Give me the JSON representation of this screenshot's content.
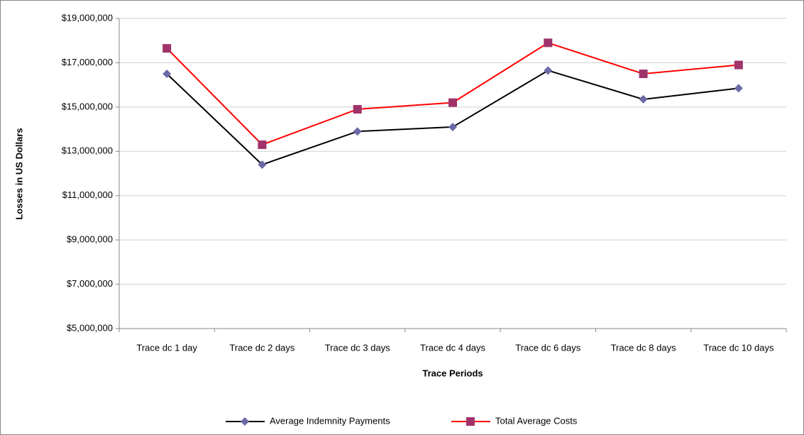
{
  "chart_data": {
    "type": "line",
    "x_label": "Trace Periods",
    "y_label": "Losses in US Dollars",
    "categories": [
      "Trace dc 1 day",
      "Trace dc 2 days",
      "Trace dc 3 days",
      "Trace dc 4 days",
      "Trace dc 6 days",
      "Trace dc 8 days",
      "Trace dc 10 days"
    ],
    "series": [
      {
        "name": "Average Indemnity Payments",
        "color": "#000000",
        "marker": "diamond",
        "marker_color": "#6a6aa6",
        "values": [
          16500000,
          12400000,
          13900000,
          14100000,
          16650000,
          15350000,
          15850000
        ]
      },
      {
        "name": "Total Average Costs",
        "color": "#ff0000",
        "marker": "square",
        "marker_color": "#a0336a",
        "values": [
          17650000,
          13300000,
          14900000,
          15200000,
          17900000,
          16500000,
          16900000
        ]
      }
    ],
    "ylim": [
      5000000,
      19000000
    ],
    "yticks": [
      {
        "value": 5000000,
        "label": "$5,000,000"
      },
      {
        "value": 7000000,
        "label": "$7,000,000"
      },
      {
        "value": 9000000,
        "label": "$9,000,000"
      },
      {
        "value": 11000000,
        "label": "$11,000,000"
      },
      {
        "value": 13000000,
        "label": "$13,000,000"
      },
      {
        "value": 15000000,
        "label": "$15,000,000"
      },
      {
        "value": 17000000,
        "label": "$17,000,000"
      },
      {
        "value": 19000000,
        "label": "$19,000,000"
      }
    ],
    "grid": true,
    "legend": "bottom"
  }
}
